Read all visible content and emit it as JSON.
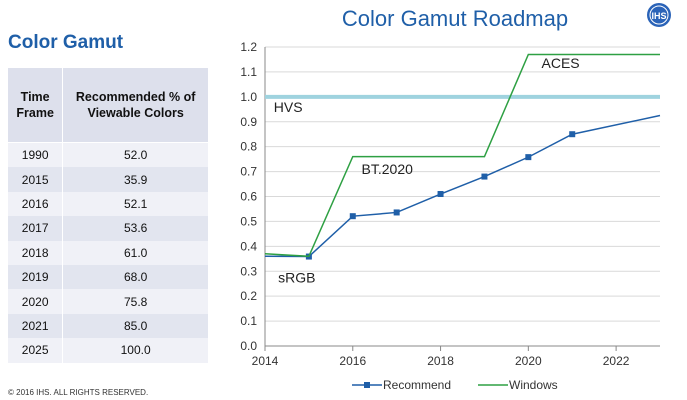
{
  "header": {
    "title": "Color Gamut Roadmap",
    "logo_text": "IHS"
  },
  "left_panel": {
    "heading": "Color Gamut"
  },
  "table": {
    "columns": [
      "Time Frame",
      "Recommended % of Viewable Colors"
    ],
    "rows": [
      [
        "1990",
        "52.0"
      ],
      [
        "2015",
        "35.9"
      ],
      [
        "2016",
        "52.1"
      ],
      [
        "2017",
        "53.6"
      ],
      [
        "2018",
        "61.0"
      ],
      [
        "2019",
        "68.0"
      ],
      [
        "2020",
        "75.8"
      ],
      [
        "2021",
        "85.0"
      ],
      [
        "2025",
        "100.0"
      ]
    ]
  },
  "footer": {
    "copyright": "© 2016 IHS. ALL RIGHTS RESERVED."
  },
  "chart_data": {
    "type": "line",
    "xlim": [
      2014,
      2023
    ],
    "ylim": [
      0,
      1.2
    ],
    "x_ticks": [
      2014,
      2016,
      2018,
      2020,
      2022
    ],
    "y_ticks": [
      0.0,
      0.1,
      0.2,
      0.3,
      0.4,
      0.5,
      0.6,
      0.7,
      0.8,
      0.9,
      1.0,
      1.1,
      1.2
    ],
    "grid": "horizontal",
    "legend": "bottom",
    "series": [
      {
        "name": "Recommend",
        "color": "#1f5fa8",
        "marker": "square",
        "x": [
          2014,
          2015,
          2016,
          2017,
          2018,
          2019,
          2020,
          2021,
          2023
        ],
        "y": [
          0.36,
          0.359,
          0.521,
          0.536,
          0.61,
          0.68,
          0.758,
          0.85,
          0.925
        ],
        "marker_x": [
          2015,
          2016,
          2017,
          2018,
          2019,
          2020,
          2021
        ]
      },
      {
        "name": "Windows",
        "color": "#2ea043",
        "marker": "none",
        "x": [
          2014,
          2015,
          2016,
          2019,
          2020,
          2023
        ],
        "y": [
          0.37,
          0.36,
          0.76,
          0.76,
          1.17,
          1.17
        ]
      }
    ],
    "reference_lines": [
      {
        "label": "HVS",
        "y": 1.0,
        "color": "#9fd3df"
      }
    ],
    "annotations": [
      {
        "text": "ACES",
        "x": 2020.3,
        "y": 1.115
      },
      {
        "text": "HVS",
        "x": 2014.2,
        "y": 0.94
      },
      {
        "text": "BT.2020",
        "x": 2016.2,
        "y": 0.69
      },
      {
        "text": "sRGB",
        "x": 2014.3,
        "y": 0.255
      }
    ]
  }
}
